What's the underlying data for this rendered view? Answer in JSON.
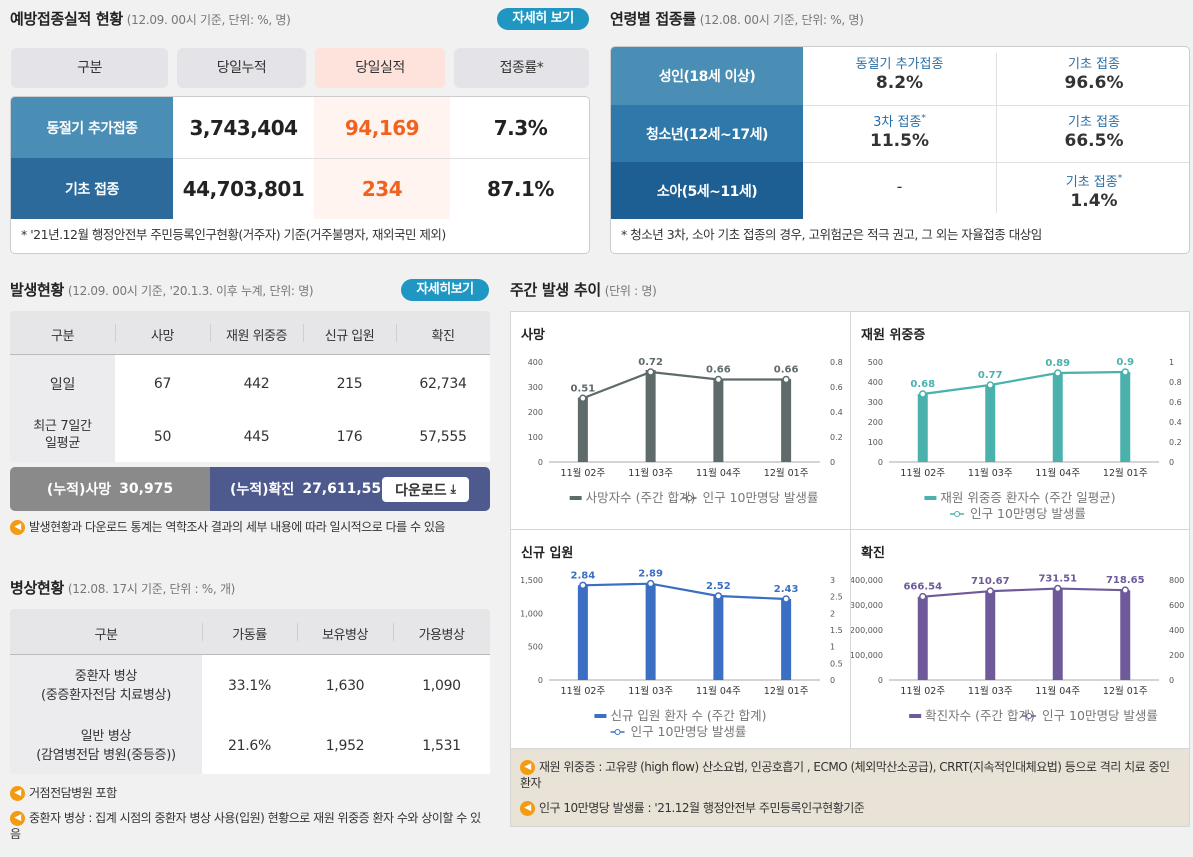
{
  "vacc": {
    "title": "예방접종실적 현황",
    "sub": "(12.09. 00시 기준, 단위: %, 명)",
    "more": "자세히 보기",
    "headers": [
      "구분",
      "당일누적",
      "당일실적",
      "접종률*"
    ],
    "rows": [
      {
        "label": "동절기 추가접종",
        "cum": "3,743,404",
        "today": "94,169",
        "rate": "7.3%"
      },
      {
        "label": "기초 접종",
        "cum": "44,703,801",
        "today": "234",
        "rate": "87.1%"
      }
    ],
    "note": "* '21년.12월 행정안전부 주민등록인구현황(거주자) 기준(거주불명자, 재외국민 제외)"
  },
  "age": {
    "title": "연령별 접종률",
    "sub": "(12.08. 00시 기준, 단위: %, 명)",
    "rows": [
      {
        "label": "성인(18세 이상)",
        "l1": "동절기 추가접종",
        "v1": "8.2%",
        "l2": "기초 접종",
        "v2": "96.6%"
      },
      {
        "label": "청소년(12세~17세)",
        "l1": "3차 접종",
        "v1": "11.5%",
        "l2": "기초 접종",
        "v2": "66.5%"
      },
      {
        "label": "소아(5세~11세)",
        "l1": "",
        "v1": "-",
        "l2": "기초 접종",
        "v2": "1.4%"
      }
    ],
    "star": "*",
    "note": "* 청소년 3차, 소아 기초 접종의 경우, 고위험군은 적극 권고, 그 외는 자율접종 대상임"
  },
  "occ": {
    "title": "발생현황",
    "sub": "(12.09. 00시 기준, '20.1.3. 이후 누계, 단위: 명)",
    "more": "자세히보기",
    "headers": [
      "구분",
      "사망",
      "재원 위중증",
      "신규 입원",
      "확진"
    ],
    "rows": [
      {
        "label": "일일",
        "label2": "",
        "v": [
          "67",
          "442",
          "215",
          "62,734"
        ]
      },
      {
        "label": "최근 7일간",
        "label2": "일평균",
        "v": [
          "50",
          "445",
          "176",
          "57,555"
        ]
      }
    ],
    "cum_death_label": "(누적)사망",
    "cum_death": "30,975",
    "cum_conf_label": "(누적)확진",
    "cum_conf": "27,611,555",
    "download": "다운로드",
    "note": "발생현황과 다운로드 통계는 역학조사 결과의 세부 내용에 따라 일시적으로 다를 수 있음"
  },
  "bed": {
    "title": "병상현황",
    "sub": "(12.08. 17시 기준, 단위 : %, 개)",
    "headers": [
      "구분",
      "가동률",
      "보유병상",
      "가용병상"
    ],
    "rows": [
      {
        "l1": "중환자 병상",
        "l2": "(중증환자전담 치료병상)",
        "v": [
          "33.1%",
          "1,630",
          "1,090"
        ]
      },
      {
        "l1": "일반 병상",
        "l2": "(감염병전담 병원(중등증))",
        "v": [
          "21.6%",
          "1,952",
          "1,531"
        ]
      }
    ],
    "notes": [
      "거점전담병원 포함",
      "중환자 병상 : 집계 시점의 중환자 병상 사용(입원) 현황으로 재원 위중증 환자 수와 상이할 수 있음"
    ]
  },
  "weekly": {
    "title": "주간 발생 추이",
    "sub": "(단위 : 명)",
    "notes": [
      "재원 위중증 : 고유량 (high flow) 산소요법, 인공호흡기 , ECMO (체외막산소공급), CRRT(지속적인대체요법) 등으로 격리 치료 중인 환자",
      "인구 10만명당 발생률 : '21.12월 행정안전부 주민등록인구현황기준"
    ]
  },
  "chart_data": [
    {
      "type": "bar",
      "title": "사망",
      "categories": [
        "11월 02주",
        "11월 03주",
        "11월 04주",
        "12월 01주"
      ],
      "series": [
        {
          "name": "사망자수 (주간 합계)",
          "values": [
            258,
            368,
            332,
            332
          ],
          "color": "#5f6a6a"
        },
        {
          "name": "인구 10만명당 발생률",
          "values": [
            0.51,
            0.72,
            0.66,
            0.66
          ],
          "color": "#5f6a6a",
          "axis": "right"
        }
      ],
      "ylim": [
        0,
        400
      ],
      "ylim_right": [
        0,
        0.8
      ],
      "yticks": [
        "0",
        "100",
        "200",
        "300",
        "400"
      ],
      "yticks_right": [
        "0",
        "0.2",
        "0.4",
        "0.6",
        "0.8"
      ]
    },
    {
      "type": "bar",
      "title": "재원 위중증",
      "categories": [
        "11월 02주",
        "11월 03주",
        "11월 04주",
        "12월 01주"
      ],
      "series": [
        {
          "name": "재원 위중증 환자수 (주간 일평균)",
          "values": [
            340,
            385,
            445,
            450
          ],
          "color": "#4ab1ad"
        },
        {
          "name": "인구 10만명당 발생률",
          "values": [
            0.68,
            0.77,
            0.89,
            0.9
          ],
          "color": "#4ab1ad",
          "axis": "right"
        }
      ],
      "ylim": [
        0,
        500
      ],
      "ylim_right": [
        0,
        1
      ],
      "yticks": [
        "0",
        "100",
        "200",
        "300",
        "400",
        "500"
      ],
      "yticks_right": [
        "0",
        "0.2",
        "0.4",
        "0.6",
        "0.8",
        "1"
      ]
    },
    {
      "type": "bar",
      "title": "신규 입원",
      "categories": [
        "11월 02주",
        "11월 03주",
        "11월 04주",
        "12월 01주"
      ],
      "series": [
        {
          "name": "신규 입원 환자 수 (주간 합계)",
          "values": [
            1420,
            1445,
            1260,
            1215
          ],
          "color": "#3a6fc4"
        },
        {
          "name": "인구 10만명당 발생률",
          "values": [
            2.84,
            2.89,
            2.52,
            2.43
          ],
          "color": "#3a6fc4",
          "axis": "right"
        }
      ],
      "ylim": [
        0,
        1500
      ],
      "ylim_right": [
        0,
        3
      ],
      "yticks": [
        "0",
        "500",
        "1,000",
        "1,500"
      ],
      "yticks_right": [
        "0",
        "0.5",
        "1",
        "1.5",
        "2",
        "2.5",
        "3"
      ]
    },
    {
      "type": "bar",
      "title": "확진",
      "categories": [
        "11월 02주",
        "11월 03주",
        "11월 04주",
        "12월 01주"
      ],
      "series": [
        {
          "name": "확진자수 (주간 합계)",
          "values": [
            333000,
            355000,
            366000,
            359000
          ],
          "color": "#6e5a9a"
        },
        {
          "name": "인구 10만명당 발생률",
          "values": [
            666.54,
            710.67,
            731.51,
            718.65
          ],
          "color": "#6e5a9a",
          "axis": "right"
        }
      ],
      "ylim": [
        0,
        400000
      ],
      "ylim_right": [
        0,
        800
      ],
      "yticks": [
        "0",
        "100,000",
        "200,000",
        "300,000",
        "400,000"
      ],
      "yticks_right": [
        "0",
        "200",
        "400",
        "600",
        "800"
      ]
    }
  ]
}
